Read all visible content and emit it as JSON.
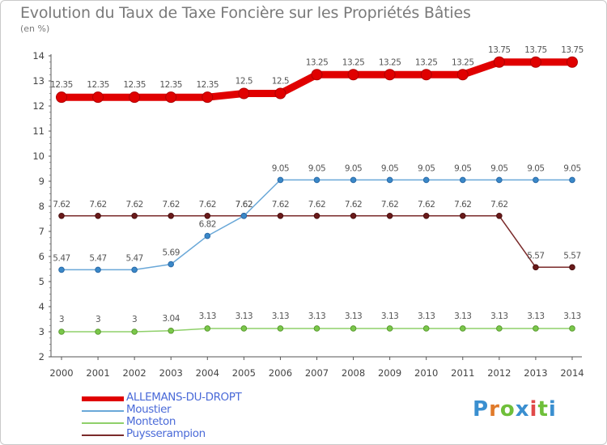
{
  "header": {
    "title": "Evolution du Taux de Taxe Foncière sur les Propriétés Bâties",
    "unit": "(en %)"
  },
  "brand": {
    "letters": [
      "P",
      "r",
      "o",
      "x",
      "i",
      "t",
      "i"
    ],
    "colors": [
      "#3a8fd0",
      "#e07a2a",
      "#6fbf3a",
      "#3a8fd0",
      "#e04a4a",
      "#6fbf3a",
      "#3a8fd0"
    ]
  },
  "chart_data": {
    "type": "line",
    "title": "Evolution du Taux de Taxe Foncière sur les Propriétés Bâties",
    "ylabel": "(en %)",
    "xlabel": "",
    "ylim": [
      2,
      14
    ],
    "yticks": [
      "2",
      "3",
      "4",
      "5",
      "6",
      "7",
      "8",
      "9",
      "10",
      "11",
      "12",
      "13",
      "14"
    ],
    "categories": [
      "2000",
      "2001",
      "2002",
      "2003",
      "2004",
      "2005",
      "2006",
      "2007",
      "2008",
      "2009",
      "2010",
      "2011",
      "2012",
      "2013",
      "2014"
    ],
    "series": [
      {
        "name": "ALLEMANS-DU-DROPT",
        "color": "#e00000",
        "legend_color": "#4a6ad8",
        "values": [
          12.35,
          12.35,
          12.35,
          12.35,
          12.35,
          12.5,
          12.5,
          13.25,
          13.25,
          13.25,
          13.25,
          13.25,
          13.75,
          13.75,
          13.75
        ],
        "labels": [
          "12.35",
          "12.35",
          "12.35",
          "12.35",
          "12.35",
          "12.5",
          "12.5",
          "13.25",
          "13.25",
          "13.25",
          "13.25",
          "13.25",
          "13.75",
          "13.75",
          "13.75"
        ]
      },
      {
        "name": "Moustier",
        "color": "#6aa8d8",
        "legend_color": "#4a6ad8",
        "marker": "#3a88c8",
        "values": [
          5.47,
          5.47,
          5.47,
          5.69,
          6.82,
          7.62,
          9.05,
          9.05,
          9.05,
          9.05,
          9.05,
          9.05,
          9.05,
          9.05,
          9.05
        ],
        "labels": [
          "5.47",
          "5.47",
          "5.47",
          "5.69",
          "6.82",
          "7.62",
          "9.05",
          "9.05",
          "9.05",
          "9.05",
          "9.05",
          "9.05",
          "9.05",
          "9.05",
          "9.05"
        ]
      },
      {
        "name": "Monteton",
        "color": "#8fd06a",
        "legend_color": "#4a6ad8",
        "marker": "#7ac84a",
        "values": [
          3,
          3,
          3,
          3.04,
          3.13,
          3.13,
          3.13,
          3.13,
          3.13,
          3.13,
          3.13,
          3.13,
          3.13,
          3.13,
          3.13
        ],
        "labels": [
          "3",
          "3",
          "3",
          "3.04",
          "3.13",
          "3.13",
          "3.13",
          "3.13",
          "3.13",
          "3.13",
          "3.13",
          "3.13",
          "3.13",
          "3.13",
          "3.13"
        ]
      },
      {
        "name": "Puysserampion",
        "color": "#7a2a2a",
        "legend_color": "#4a6ad8",
        "marker": "#6a1a1a",
        "values": [
          7.62,
          7.62,
          7.62,
          7.62,
          7.62,
          7.62,
          7.62,
          7.62,
          7.62,
          7.62,
          7.62,
          7.62,
          7.62,
          5.57,
          5.57
        ],
        "labels": [
          "7.62",
          "7.62",
          "7.62",
          "7.62",
          "7.62",
          "7.62",
          "7.62",
          "7.62",
          "7.62",
          "7.62",
          "7.62",
          "7.62",
          "7.62",
          "5.57",
          "5.57"
        ]
      }
    ],
    "legend": [
      "ALLEMANS-DU-DROPT",
      "Moustier",
      "Monteton",
      "Puysserampion"
    ],
    "legend_position": "bottom-left",
    "grid": false
  }
}
